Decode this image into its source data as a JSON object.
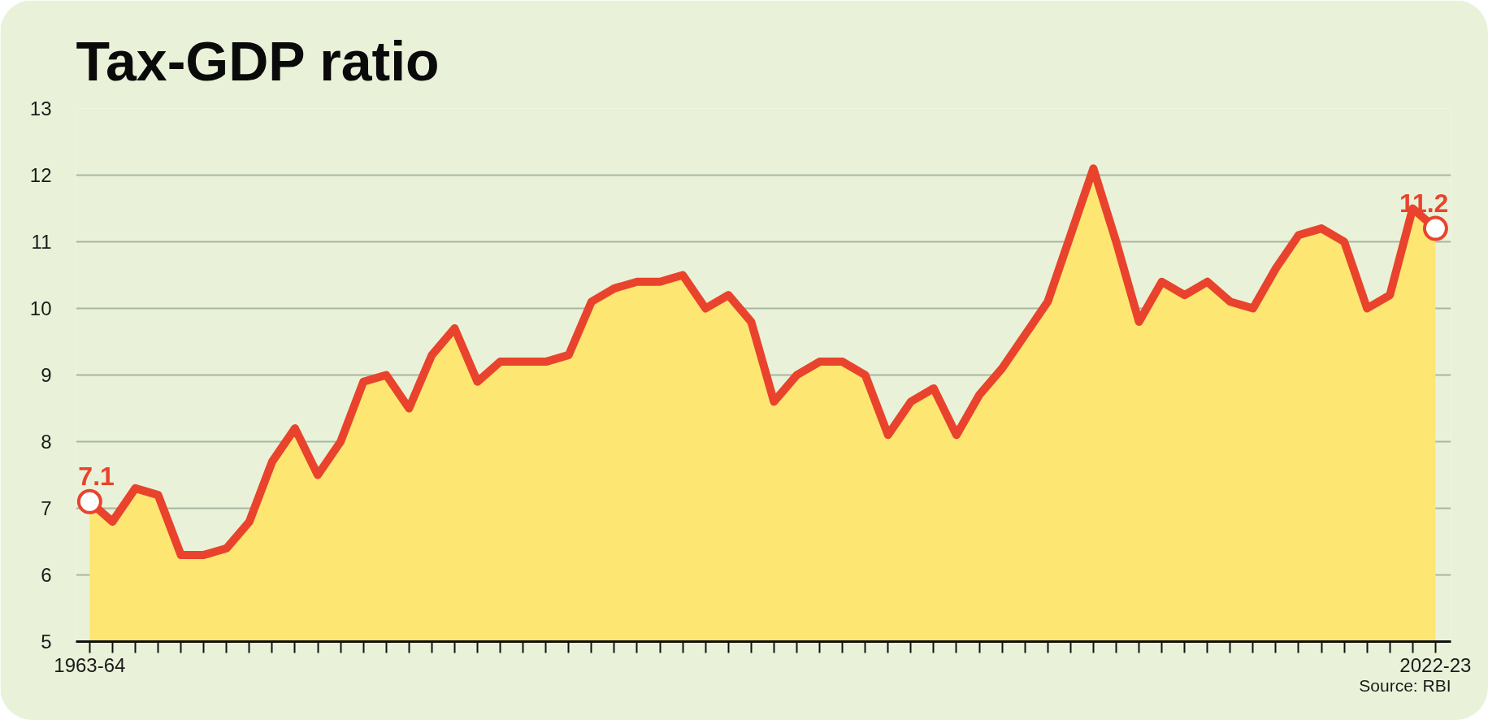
{
  "chart_data": {
    "type": "area",
    "title": "Tax-GDP ratio",
    "categories": [
      "1963-64",
      null,
      null,
      null,
      null,
      null,
      null,
      null,
      null,
      null,
      null,
      null,
      null,
      null,
      null,
      null,
      null,
      null,
      null,
      null,
      null,
      null,
      null,
      null,
      null,
      null,
      null,
      null,
      null,
      null,
      null,
      null,
      null,
      null,
      null,
      null,
      null,
      null,
      null,
      null,
      null,
      null,
      null,
      null,
      null,
      null,
      null,
      null,
      null,
      null,
      null,
      null,
      null,
      null,
      null,
      null,
      null,
      null,
      null,
      "2022-23"
    ],
    "series": [
      {
        "color": "#e9432d",
        "values": [
          7.1,
          6.8,
          7.3,
          7.2,
          6.3,
          6.3,
          6.4,
          6.8,
          7.7,
          8.2,
          7.5,
          8.0,
          8.9,
          9.0,
          8.5,
          9.3,
          9.7,
          8.9,
          9.2,
          9.2,
          9.2,
          9.3,
          10.1,
          10.3,
          10.4,
          10.4,
          10.5,
          10.0,
          10.2,
          9.8,
          8.6,
          9.0,
          9.2,
          9.2,
          9.0,
          8.1,
          8.6,
          8.8,
          8.1,
          8.7,
          9.1,
          9.6,
          10.1,
          11.1,
          12.1,
          11.0,
          9.8,
          10.4,
          10.2,
          10.4,
          10.1,
          10.0,
          10.6,
          11.1,
          11.2,
          11.0,
          10.0,
          10.2,
          11.5,
          11.2
        ]
      },
      {
        "type": "scatter",
        "color": "#ffffff",
        "marker": "circle",
        "x": [
          "1963-64",
          "2022-23"
        ],
        "values": [
          7.1,
          11.2
        ],
        "value_labels": [
          "7.1",
          "11.2"
        ]
      }
    ],
    "ylim": [
      5,
      13
    ],
    "yticks": [
      5,
      6,
      7,
      8,
      9,
      10,
      11,
      12,
      13
    ],
    "grid": "y",
    "annotations": [
      "Source: RBI"
    ]
  }
}
